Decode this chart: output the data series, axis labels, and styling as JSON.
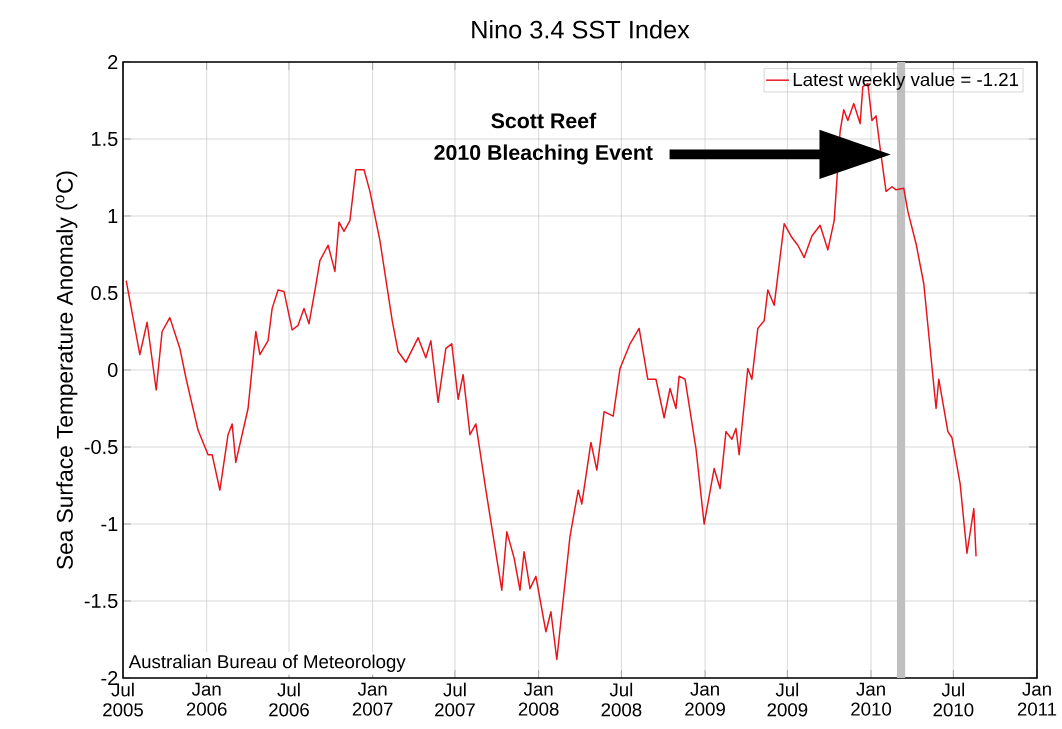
{
  "chart_data": {
    "type": "line",
    "title": "Nino 3.4 SST Index",
    "ylabel": "Sea Surface Temperature Anomaly ($^{o}$C)",
    "xlim": [
      "2005-07-01",
      "2011-01-01"
    ],
    "xticks": [
      {
        "value": "2005-07-01",
        "label": "Jul 2005"
      },
      {
        "value": "2006-01-01",
        "label": "Jan 2006"
      },
      {
        "value": "2006-07-01",
        "label": "Jul 2006"
      },
      {
        "value": "2007-01-01",
        "label": "Jan 2007"
      },
      {
        "value": "2007-07-01",
        "label": "Jul 2007"
      },
      {
        "value": "2008-01-01",
        "label": "Jan 2008"
      },
      {
        "value": "2008-07-01",
        "label": "Jul 2008"
      },
      {
        "value": "2009-01-01",
        "label": "Jan 2009"
      },
      {
        "value": "2009-07-01",
        "label": "Jul 2009"
      },
      {
        "value": "2010-01-01",
        "label": "Jan 2010"
      },
      {
        "value": "2010-07-01",
        "label": "Jul 2010"
      },
      {
        "value": "2011-01-01",
        "label": "Jan 2011"
      }
    ],
    "ylim": [
      -2,
      2
    ],
    "yticks": [
      -2,
      -1.5,
      -1,
      -0.5,
      0,
      0.5,
      1,
      1.5,
      2
    ],
    "grid": true,
    "legend": "top right",
    "bands": [
      {
        "axis": "x",
        "from": "2010-02-27",
        "to": "2010-03-17",
        "color": "#c0c0c0"
      }
    ],
    "annotations": [
      "Scott Reef",
      "2010 Bleaching Event",
      "Australian Bureau of Meteorology"
    ],
    "series": [
      {
        "name": "Latest weekly value = -1.21",
        "color": "#e8141c",
        "x": [
          "2005-07-08",
          "2005-08-07",
          "2005-08-23",
          "2005-09-12",
          "2005-09-25",
          "2005-10-12",
          "2005-11-03",
          "2005-11-17",
          "2005-12-13",
          "2006-01-04",
          "2006-01-13",
          "2006-01-30",
          "2006-02-17",
          "2006-02-26",
          "2006-03-06",
          "2006-04-02",
          "2006-04-19",
          "2006-04-28",
          "2006-05-16",
          "2006-05-25",
          "2006-06-07",
          "2006-06-20",
          "2006-07-08",
          "2006-07-21",
          "2006-08-03",
          "2006-08-14",
          "2006-08-29",
          "2006-09-07",
          "2006-09-25",
          "2006-10-10",
          "2006-10-19",
          "2006-10-30",
          "2006-11-12",
          "2006-11-25",
          "2006-12-13",
          "2006-12-26",
          "2007-01-17",
          "2007-02-13",
          "2007-02-26",
          "2007-03-15",
          "2007-04-11",
          "2007-04-28",
          "2007-05-09",
          "2007-05-25",
          "2007-06-11",
          "2007-06-24",
          "2007-07-08",
          "2007-07-19",
          "2007-08-03",
          "2007-08-16",
          "2007-09-07",
          "2007-10-12",
          "2007-10-23",
          "2007-11-08",
          "2007-11-21",
          "2007-11-30",
          "2007-12-13",
          "2007-12-26",
          "2008-01-17",
          "2008-01-28",
          "2008-02-10",
          "2008-03-10",
          "2008-03-28",
          "2008-04-05",
          "2008-04-25",
          "2008-05-08",
          "2008-05-24",
          "2008-06-13",
          "2008-06-28",
          "2008-07-20",
          "2008-08-09",
          "2008-08-28",
          "2008-09-15",
          "2008-10-03",
          "2008-10-16",
          "2008-10-29",
          "2008-11-05",
          "2008-11-18",
          "2008-12-12",
          "2008-12-30",
          "2009-01-21",
          "2009-02-03",
          "2009-02-16",
          "2009-03-01",
          "2009-03-10",
          "2009-03-17",
          "2009-04-05",
          "2009-04-14",
          "2009-04-27",
          "2009-05-11",
          "2009-05-19",
          "2009-06-02",
          "2009-06-24",
          "2009-07-11",
          "2009-07-24",
          "2009-08-07",
          "2009-08-24",
          "2009-09-11",
          "2009-09-28",
          "2009-10-12",
          "2009-10-25",
          "2009-11-02",
          "2009-11-11",
          "2009-11-24",
          "2009-12-08",
          "2009-12-14",
          "2009-12-25",
          "2010-01-03",
          "2010-01-12",
          "2010-01-21",
          "2010-02-03",
          "2010-02-16",
          "2010-02-25",
          "2010-03-14",
          "2010-03-23",
          "2010-04-10",
          "2010-04-27",
          "2010-05-24",
          "2010-05-30",
          "2010-06-19",
          "2010-06-28",
          "2010-07-16",
          "2010-07-31",
          "2010-08-15",
          "2010-08-20"
        ],
        "values": [
          0.58,
          0.1,
          0.31,
          -0.13,
          0.25,
          0.34,
          0.14,
          -0.06,
          -0.39,
          -0.55,
          -0.55,
          -0.78,
          -0.42,
          -0.35,
          -0.6,
          -0.25,
          0.25,
          0.1,
          0.19,
          0.4,
          0.52,
          0.51,
          0.26,
          0.29,
          0.4,
          0.3,
          0.55,
          0.71,
          0.81,
          0.64,
          0.96,
          0.9,
          0.97,
          1.3,
          1.3,
          1.16,
          0.84,
          0.32,
          0.12,
          0.05,
          0.21,
          0.08,
          0.19,
          -0.21,
          0.14,
          0.17,
          -0.19,
          -0.03,
          -0.42,
          -0.35,
          -0.78,
          -1.43,
          -1.05,
          -1.22,
          -1.43,
          -1.18,
          -1.42,
          -1.34,
          -1.7,
          -1.57,
          -1.88,
          -1.08,
          -0.78,
          -0.87,
          -0.47,
          -0.65,
          -0.27,
          -0.3,
          0.01,
          0.17,
          0.27,
          -0.06,
          -0.06,
          -0.31,
          -0.12,
          -0.25,
          -0.04,
          -0.06,
          -0.51,
          -1.0,
          -0.64,
          -0.77,
          -0.4,
          -0.45,
          -0.38,
          -0.55,
          0.01,
          -0.06,
          0.27,
          0.32,
          0.52,
          0.42,
          0.95,
          0.86,
          0.81,
          0.73,
          0.87,
          0.94,
          0.78,
          0.97,
          1.55,
          1.69,
          1.62,
          1.73,
          1.6,
          1.84,
          1.86,
          1.62,
          1.65,
          1.44,
          1.16,
          1.19,
          1.17,
          1.18,
          1.03,
          0.82,
          0.56,
          -0.25,
          -0.06,
          -0.4,
          -0.44,
          -0.74,
          -1.19,
          -0.9,
          -1.21
        ]
      }
    ]
  }
}
